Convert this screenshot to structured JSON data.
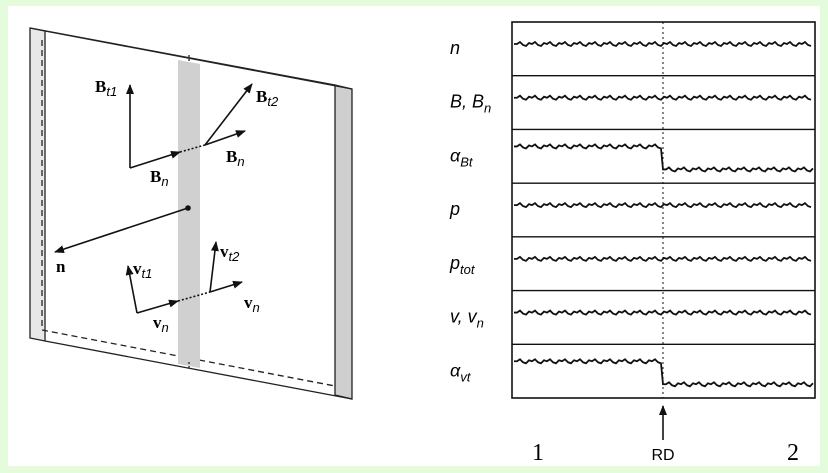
{
  "left_panel": {
    "labels": [
      {
        "base": "B",
        "sub": "t1"
      },
      {
        "base": "B",
        "sub": "t2"
      },
      {
        "base": "B",
        "sub": "n"
      },
      {
        "base": "B",
        "sub": "n"
      },
      {
        "base": "n"
      },
      {
        "base": "v",
        "sub": "t1"
      },
      {
        "base": "v",
        "sub": "t2"
      },
      {
        "base": "v",
        "sub": "n"
      },
      {
        "base": "v",
        "sub": "n"
      }
    ]
  },
  "right_panel": {
    "rows": [
      {
        "base": "n"
      },
      {
        "base": "B, B",
        "sub": "n"
      },
      {
        "base": "α",
        "sub": "Bt"
      },
      {
        "base": "p"
      },
      {
        "base": "p",
        "sub": "tot"
      },
      {
        "base": "v, v",
        "sub": "n"
      },
      {
        "base": "α",
        "sub": "vt"
      }
    ],
    "marker": "RD",
    "region_left": "1",
    "region_right": "2"
  }
}
